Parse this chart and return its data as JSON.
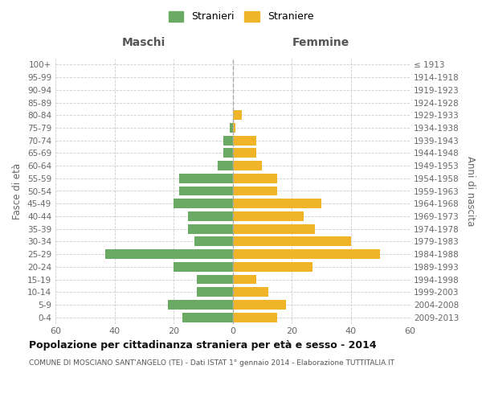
{
  "age_groups": [
    "100+",
    "95-99",
    "90-94",
    "85-89",
    "80-84",
    "75-79",
    "70-74",
    "65-69",
    "60-64",
    "55-59",
    "50-54",
    "45-49",
    "40-44",
    "35-39",
    "30-34",
    "25-29",
    "20-24",
    "15-19",
    "10-14",
    "5-9",
    "0-4"
  ],
  "birth_years": [
    "≤ 1913",
    "1914-1918",
    "1919-1923",
    "1924-1928",
    "1929-1933",
    "1934-1938",
    "1939-1943",
    "1944-1948",
    "1949-1953",
    "1954-1958",
    "1959-1963",
    "1964-1968",
    "1969-1973",
    "1974-1978",
    "1979-1983",
    "1984-1988",
    "1989-1993",
    "1994-1998",
    "1999-2003",
    "2004-2008",
    "2009-2013"
  ],
  "males": [
    0,
    0,
    0,
    0,
    0,
    1,
    3,
    3,
    5,
    18,
    18,
    20,
    15,
    15,
    13,
    43,
    20,
    12,
    12,
    22,
    17
  ],
  "females": [
    0,
    0,
    0,
    0,
    3,
    1,
    8,
    8,
    10,
    15,
    15,
    30,
    24,
    28,
    40,
    50,
    27,
    8,
    12,
    18,
    15
  ],
  "male_color": "#6aaa64",
  "female_color": "#f0b429",
  "background_color": "#ffffff",
  "grid_color": "#cccccc",
  "title": "Popolazione per cittadinanza straniera per età e sesso - 2014",
  "subtitle": "COMUNE DI MOSCIANO SANT'ANGELO (TE) - Dati ISTAT 1° gennaio 2014 - Elaborazione TUTTITALIA.IT",
  "label_maschi": "Maschi",
  "label_femmine": "Femmine",
  "ylabel_left": "Fasce di età",
  "ylabel_right": "Anni di nascita",
  "legend_male": "Stranieri",
  "legend_female": "Straniere",
  "xlim": 60,
  "bar_height": 0.75
}
